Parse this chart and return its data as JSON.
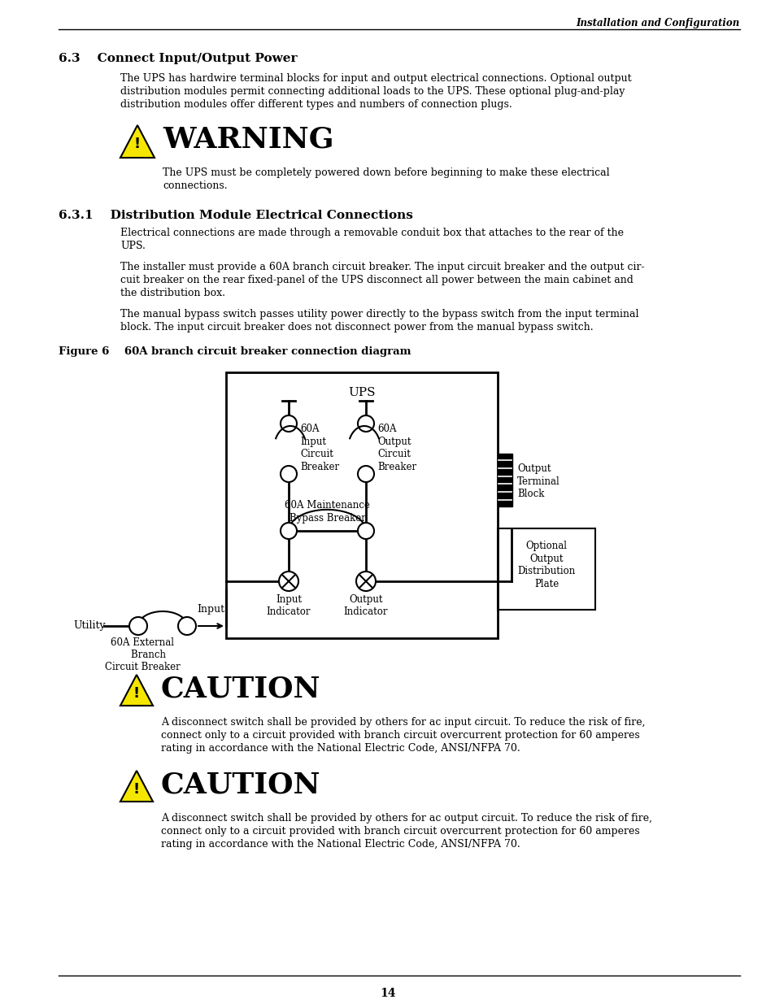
{
  "page_title_right": "Installation and Configuration",
  "section_63_title": "6.3    Connect Input/Output Power",
  "section_63_body": [
    "The UPS has hardwire terminal blocks for input and output electrical connections. Optional output",
    "distribution modules permit connecting additional loads to the UPS. These optional plug-and-play",
    "distribution modules offer different types and numbers of connection plugs."
  ],
  "warning_title": "WARNING",
  "warning_body": [
    "The UPS must be completely powered down before beginning to make these electrical",
    "connections."
  ],
  "section_631_title": "6.3.1    Distribution Module Electrical Connections",
  "section_631_body1": [
    "Electrical connections are made through a removable conduit box that attaches to the rear of the",
    "UPS."
  ],
  "section_631_body2": [
    "The installer must provide a 60A branch circuit breaker. The input circuit breaker and the output cir-",
    "cuit breaker on the rear fixed-panel of the UPS disconnect all power between the main cabinet and",
    "the distribution box."
  ],
  "section_631_body3": [
    "The manual bypass switch passes utility power directly to the bypass switch from the input terminal",
    "block. The input circuit breaker does not disconnect power from the manual bypass switch."
  ],
  "figure_caption": "Figure 6    60A branch circuit breaker connection diagram",
  "caution1_title": "CAUTION",
  "caution1_body": [
    "A disconnect switch shall be provided by others for ac input circuit. To reduce the risk of fire,",
    "connect only to a circuit provided with branch circuit overcurrent protection for 60 amperes",
    "rating in accordance with the National Electric Code, ANSI/NFPA 70."
  ],
  "caution2_title": "CAUTION",
  "caution2_body": [
    "A disconnect switch shall be provided by others for ac output circuit. To reduce the risk of fire,",
    "connect only to a circuit provided with branch circuit overcurrent protection for 60 amperes",
    "rating in accordance with the National Electric Code, ANSI/NFPA 70."
  ],
  "page_number": "14",
  "bg_color": "#ffffff",
  "text_color": "#000000",
  "tri_color": "#f5e600"
}
